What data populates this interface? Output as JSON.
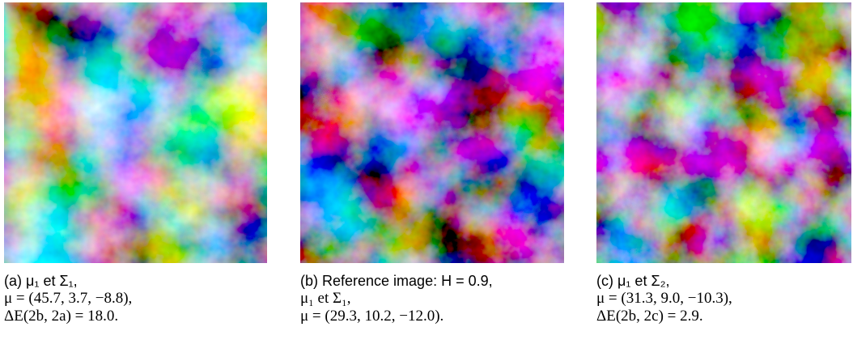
{
  "panels": [
    {
      "caption": [
        "(a) μ₁ et Σ₁,",
        "μ = (45.7, 3.7, −8.8),",
        "ΔE(2b, 2a) = 18.0."
      ]
    },
    {
      "caption": [
        "(b) Reference image: H = 0.9,",
        "μ₁ et Σ₁,",
        "μ = (29.3, 10.2, −12.0)."
      ]
    },
    {
      "caption": [
        "(c) μ₁ et Σ₂,",
        "μ = (31.3, 9.0, −10.3),",
        "ΔE(2b, 2c) = 2.9."
      ]
    }
  ]
}
